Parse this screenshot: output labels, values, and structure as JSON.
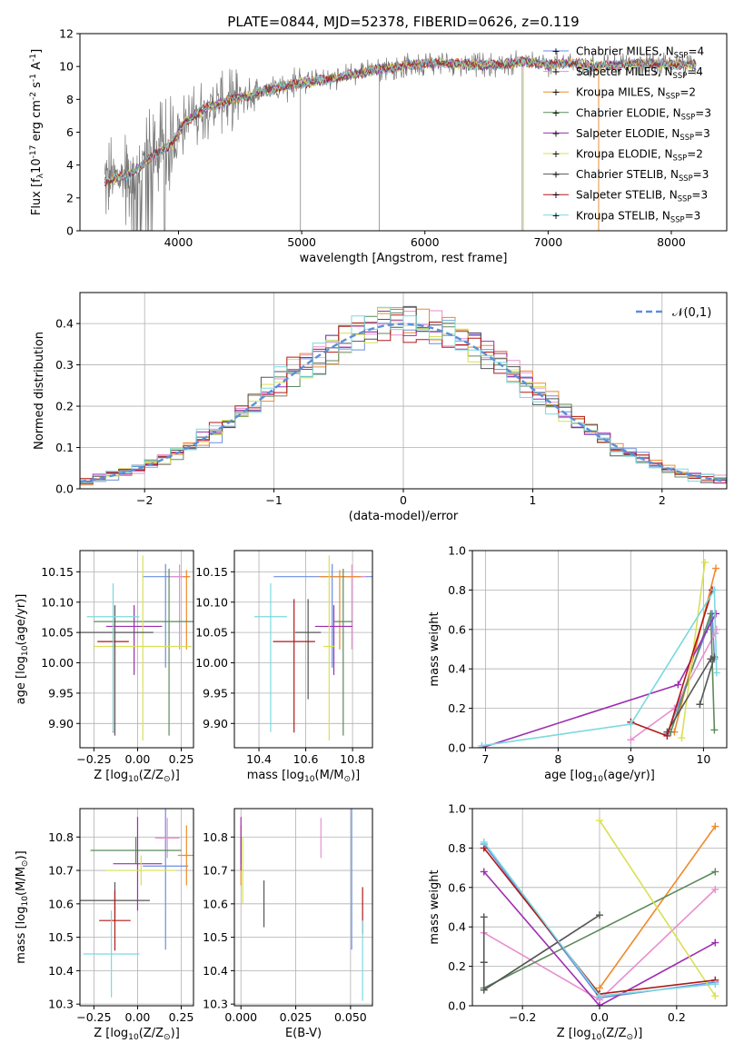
{
  "figure": {
    "title": "PLATE=0844, MJD=52378, FIBERID=0626, z=0.119"
  },
  "colors": [
    "#6a8ee0",
    "#e88fcf",
    "#ee8a2b",
    "#5c8a5c",
    "#9d2db0",
    "#d9e055",
    "#555555",
    "#b01818",
    "#7ad9df"
  ],
  "chart_data": [
    {
      "id": "spectrum",
      "type": "line",
      "xlabel": "wavelength [Angstrom, rest frame]",
      "ylabel": "Flux [f$_\\lambda$10$^{-17}$ erg cm$^{-2}$ s$^{-1}$ A$^{-1}$]",
      "xlim": [
        3200,
        8450
      ],
      "ylim": [
        0,
        12
      ],
      "xticks": [
        4000,
        5000,
        6000,
        7000,
        8000
      ],
      "yticks": [
        0,
        2,
        4,
        6,
        8,
        10,
        12
      ],
      "grid": false,
      "legend": "upper right",
      "continuum": {
        "x": [
          3400,
          3600,
          3800,
          3950,
          4050,
          4200,
          4400,
          4600,
          4800,
          5000,
          5200,
          5400,
          5600,
          5800,
          6000,
          6200,
          6400,
          6600,
          6800,
          7000,
          7200,
          7400,
          7600,
          7800,
          8000,
          8200
        ],
        "y": [
          3.0,
          3.4,
          4.6,
          5.3,
          6.6,
          7.4,
          7.9,
          8.3,
          8.7,
          9.0,
          9.2,
          9.5,
          9.8,
          10.0,
          10.2,
          10.2,
          10.1,
          10.1,
          10.3,
          10.1,
          10.2,
          10.0,
          10.1,
          10.2,
          10.1,
          10.1
        ]
      },
      "series": [
        {
          "name": "Chabrier MILES, N$_{SSP}$=4"
        },
        {
          "name": "Salpeter MILES, N$_{SSP}$=4"
        },
        {
          "name": "Kroupa MILES, N$_{SSP}$=2"
        },
        {
          "name": "Chabrier ELODIE, N$_{SSP}$=3"
        },
        {
          "name": "Salpeter ELODIE, N$_{SSP}$=3"
        },
        {
          "name": "Kroupa ELODIE, N$_{SSP}$=2"
        },
        {
          "name": "Chabrier STELIB, N$_{SSP}$=3"
        },
        {
          "name": "Salpeter STELIB, N$_{SSP}$=3"
        },
        {
          "name": "Kroupa STELIB, N$_{SSP}$=3"
        }
      ]
    },
    {
      "id": "residuals",
      "type": "line",
      "xlabel": "(data-model)/error",
      "ylabel": "Normed distribution",
      "xlim": [
        -2.5,
        2.5
      ],
      "ylim": [
        0,
        0.475
      ],
      "xticks": [
        -2,
        -1,
        0,
        1,
        2
      ],
      "yticks": [
        0.0,
        0.1,
        0.2,
        0.3,
        0.4
      ],
      "grid": true,
      "legend": "upper right",
      "normal_label": "$\\mathcal{N}(0,1)$",
      "bin_width": 0.1
    },
    {
      "id": "age-vs-Z",
      "type": "scatter",
      "xlabel": "Z [log$_{10}$(Z/Z$_\\odot$)]",
      "ylabel": "age  [log$_{10}$(age/yr)]",
      "xlim": [
        -0.33,
        0.32
      ],
      "ylim": [
        9.86,
        10.185
      ],
      "xticks": [
        -0.25,
        0.0,
        0.25
      ],
      "yticks": [
        9.9,
        9.95,
        10.0,
        10.05,
        10.1,
        10.15
      ],
      "grid": true,
      "points": [
        {
          "x": 0.16,
          "y": 10.142,
          "xerr": 0.13,
          "yerr": [
            0.15,
            0.021
          ]
        },
        {
          "x": 0.24,
          "y": 10.142,
          "xerr": 0.06,
          "yerr": [
            0.12,
            0.02
          ]
        },
        {
          "x": 0.28,
          "y": 10.142,
          "xerr": 0.02,
          "yerr": [
            0.12,
            0.011
          ]
        },
        {
          "x": 0.18,
          "y": 10.068,
          "xerr": 0.43,
          "yerr": [
            0.188,
            0.087
          ]
        },
        {
          "x": -0.02,
          "y": 10.06,
          "xerr": 0.16,
          "yerr": [
            0.08,
            0.035
          ]
        },
        {
          "x": 0.03,
          "y": 10.027,
          "xerr": 0.28,
          "yerr": [
            0.155,
            0.15
          ]
        },
        {
          "x": -0.13,
          "y": 10.05,
          "xerr": 0.22,
          "yerr": [
            0.17,
            0.045
          ]
        },
        {
          "x": -0.14,
          "y": 10.035,
          "xerr": 0.09,
          "yerr": [
            0.15,
            0.03
          ]
        },
        {
          "x": -0.14,
          "y": 10.076,
          "xerr": 0.15,
          "yerr": [
            0.19,
            0.055
          ]
        }
      ]
    },
    {
      "id": "age-vs-mass",
      "type": "scatter",
      "xlabel": "mass [log$_{10}$(M/M$_\\odot$)]",
      "ylabel": "",
      "xlim": [
        10.295,
        10.885
      ],
      "ylim": [
        9.86,
        10.185
      ],
      "xticks": [
        10.4,
        10.6,
        10.8
      ],
      "yticks": [
        9.9,
        9.95,
        10.0,
        10.05,
        10.1,
        10.15
      ],
      "grid": true,
      "points": [
        {
          "x": 10.713,
          "y": 10.142,
          "xerr": 0.25,
          "yerr": [
            0.15,
            0.021
          ]
        },
        {
          "x": 10.797,
          "y": 10.142,
          "xerr": 0.06,
          "yerr": [
            0.12,
            0.02
          ]
        },
        {
          "x": 10.745,
          "y": 10.142,
          "xerr": 0.09,
          "yerr": [
            0.12,
            0.011
          ]
        },
        {
          "x": 10.76,
          "y": 10.068,
          "xerr": 0.04,
          "yerr": [
            0.188,
            0.087
          ]
        },
        {
          "x": 10.72,
          "y": 10.06,
          "xerr": 0.08,
          "yerr": [
            0.08,
            0.035
          ]
        },
        {
          "x": 10.7,
          "y": 10.027,
          "xerr": 0.025,
          "yerr": [
            0.155,
            0.15
          ]
        },
        {
          "x": 10.61,
          "y": 10.05,
          "xerr": 0.055,
          "yerr": [
            0.11,
            0.055
          ]
        },
        {
          "x": 10.55,
          "y": 10.035,
          "xerr": 0.09,
          "yerr": [
            0.15,
            0.07
          ]
        },
        {
          "x": 10.45,
          "y": 10.076,
          "xerr": 0.07,
          "yerr": [
            0.19,
            0.055
          ]
        }
      ]
    },
    {
      "id": "weight-vs-age",
      "type": "line",
      "xlabel": "age  [log$_{10}$(age/yr)]",
      "ylabel": "mass weight",
      "xlim": [
        6.82,
        10.32
      ],
      "ylim": [
        0,
        1.0
      ],
      "xticks": [
        7,
        8,
        9,
        10
      ],
      "yticks": [
        0.0,
        0.2,
        0.4,
        0.6,
        0.8,
        1.0
      ],
      "grid": true,
      "series": [
        {
          "x": [
            9.5,
            10.05,
            10.12,
            10.15
          ],
          "y": [
            0.07,
            0.6,
            0.68,
            0.45
          ]
        },
        {
          "x": [
            9.0,
            9.6,
            10.16,
            10.18
          ],
          "y": [
            0.04,
            0.2,
            0.58,
            0.6
          ]
        },
        {
          "x": [
            9.6,
            10.17
          ],
          "y": [
            0.08,
            0.91
          ]
        },
        {
          "x": [
            9.55,
            10.1,
            10.15
          ],
          "y": [
            0.08,
            0.68,
            0.09
          ]
        },
        {
          "x": [
            6.95,
            9.65,
            10.17
          ],
          "y": [
            0.0,
            0.32,
            0.68
          ]
        },
        {
          "x": [
            9.7,
            10.02
          ],
          "y": [
            0.05,
            0.94
          ]
        },
        {
          "x": [
            9.5,
            10.1,
            10.15,
            9.95
          ],
          "y": [
            0.08,
            0.45,
            0.46,
            0.22
          ]
        },
        {
          "x": [
            9.0,
            9.5,
            10.12
          ],
          "y": [
            0.13,
            0.06,
            0.8
          ]
        },
        {
          "x": [
            6.95,
            9.0,
            10.15,
            10.18
          ],
          "y": [
            0.01,
            0.12,
            0.8,
            0.38
          ]
        }
      ]
    },
    {
      "id": "mass-vs-Z",
      "type": "scatter",
      "xlabel": "Z [log$_{10}$(Z/Z$_\\odot$)]",
      "ylabel": "mass [log$_{10}$(M/M$_\\odot$)]",
      "xlim": [
        -0.33,
        0.32
      ],
      "ylim": [
        10.295,
        10.885
      ],
      "xticks": [
        -0.25,
        0.0,
        0.25
      ],
      "yticks": [
        10.3,
        10.4,
        10.5,
        10.6,
        10.7,
        10.8
      ],
      "grid": true,
      "points": [
        {
          "x": 0.16,
          "y": 10.713,
          "xerr": 0.13,
          "yerr": 0.25
        },
        {
          "x": 0.17,
          "y": 10.797,
          "xerr": 0.07,
          "yerr": 0.06
        },
        {
          "x": 0.28,
          "y": 10.745,
          "xerr": 0.05,
          "yerr": 0.09
        },
        {
          "x": -0.01,
          "y": 10.76,
          "xerr": 0.26,
          "yerr": 0.04
        },
        {
          "x": 0.0,
          "y": 10.72,
          "xerr": 0.14,
          "yerr": 0.14
        },
        {
          "x": 0.02,
          "y": 10.7,
          "xerr": 0.2,
          "yerr": 0.045
        },
        {
          "x": -0.13,
          "y": 10.61,
          "xerr": 0.2,
          "yerr": 0.055
        },
        {
          "x": -0.13,
          "y": 10.55,
          "xerr": 0.09,
          "yerr": 0.09
        },
        {
          "x": -0.15,
          "y": 10.45,
          "xerr": 0.16,
          "yerr": 0.13
        }
      ]
    },
    {
      "id": "mass-vs-ebv",
      "type": "scatter",
      "xlabel": "E(B-V)",
      "ylabel": "",
      "xlim": [
        -0.003,
        0.06
      ],
      "ylim": [
        10.295,
        10.885
      ],
      "xticks": [
        0.0,
        0.025,
        0.05
      ],
      "yticks": [
        10.3,
        10.4,
        10.5,
        10.6,
        10.7,
        10.8
      ],
      "grid": true,
      "points": [
        {
          "x": 0.0505,
          "y": 10.713,
          "yerr": 0.25
        },
        {
          "x": 0.0365,
          "y": 10.797,
          "yerr": 0.06
        },
        {
          "x": 0.0,
          "y": 10.745,
          "yerr": 0.09
        },
        {
          "x": 0.0,
          "y": 10.76,
          "yerr": 0.04
        },
        {
          "x": 0.0,
          "y": 10.78,
          "yerr": 0.08
        },
        {
          "x": 0.0008,
          "y": 10.7,
          "yerr": 0.1
        },
        {
          "x": 0.0105,
          "y": 10.6,
          "yerr": 0.07
        },
        {
          "x": 0.0555,
          "y": 10.58,
          "yerr": 0.07
        },
        {
          "x": 0.0555,
          "y": 10.43,
          "yerr": 0.12
        }
      ]
    },
    {
      "id": "weight-vs-Z",
      "type": "line",
      "xlabel": "Z [log$_{10}$(Z/Z$_\\odot$)]",
      "ylabel": "mass weight",
      "xlim": [
        -0.33,
        0.33
      ],
      "ylim": [
        0,
        1.0
      ],
      "xticks": [
        -0.2,
        0.0,
        0.2
      ],
      "yticks": [
        0.0,
        0.2,
        0.4,
        0.6,
        0.8,
        1.0
      ],
      "grid": true,
      "series": [
        {
          "x": [
            -0.3,
            0.0,
            0.3
          ],
          "y": [
            0.82,
            0.04,
            0.12
          ]
        },
        {
          "x": [
            -0.3,
            0.0,
            0.3
          ],
          "y": [
            0.37,
            0.03,
            0.59
          ]
        },
        {
          "x": [
            0.0,
            0.3
          ],
          "y": [
            0.09,
            0.91
          ]
        },
        {
          "x": [
            -0.3,
            0.3
          ],
          "y": [
            0.09,
            0.68
          ]
        },
        {
          "x": [
            -0.3,
            0.0,
            0.3
          ],
          "y": [
            0.68,
            0.0,
            0.32
          ]
        },
        {
          "x": [
            0.0,
            0.3
          ],
          "y": [
            0.94,
            0.05
          ]
        },
        {
          "x": [
            -0.3,
            -0.3,
            -0.3,
            0.0
          ],
          "y": [
            0.45,
            0.22,
            0.08,
            0.46
          ]
        },
        {
          "x": [
            -0.3,
            0.0,
            0.3
          ],
          "y": [
            0.8,
            0.06,
            0.13
          ]
        },
        {
          "x": [
            -0.3,
            0.0,
            0.3
          ],
          "y": [
            0.83,
            0.05,
            0.11
          ]
        }
      ]
    }
  ]
}
